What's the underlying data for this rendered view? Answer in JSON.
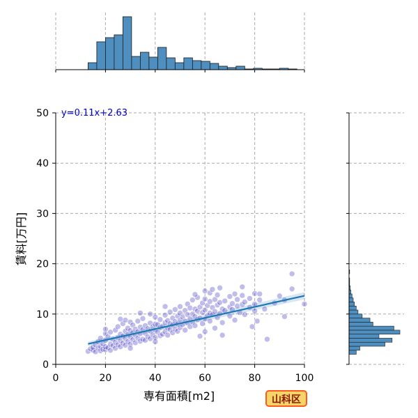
{
  "chart_data": {
    "type": "scatter",
    "xlabel": "専有面積[m2]",
    "ylabel": "賃料[万円]",
    "xlim": [
      0,
      100
    ],
    "ylim": [
      0,
      50
    ],
    "x_ticks": [
      0,
      20,
      40,
      60,
      80,
      100
    ],
    "y_ticks": [
      0,
      10,
      20,
      30,
      40,
      50
    ],
    "grid": true,
    "regression": {
      "label": "y=0.11x+2.63",
      "slope": 0.11,
      "intercept": 2.63,
      "x_range": [
        13,
        100
      ],
      "color": "#1f77b4"
    },
    "point_color": "#3a2fc0",
    "hist_color": "#4f8fc0",
    "points": [
      [
        13,
        2.6
      ],
      [
        14,
        3.1
      ],
      [
        15,
        2.8
      ],
      [
        15,
        3.4
      ],
      [
        16,
        2.5
      ],
      [
        16,
        3.9
      ],
      [
        17,
        3.2
      ],
      [
        17,
        4.5
      ],
      [
        18,
        2.7
      ],
      [
        18,
        3.6
      ],
      [
        18,
        5.2
      ],
      [
        19,
        3.0
      ],
      [
        19,
        4.1
      ],
      [
        20,
        2.9
      ],
      [
        20,
        3.5
      ],
      [
        20,
        4.8
      ],
      [
        20,
        6.1
      ],
      [
        20,
        7.0
      ],
      [
        21,
        3.3
      ],
      [
        21,
        5.5
      ],
      [
        22,
        2.8
      ],
      [
        22,
        4.0
      ],
      [
        22,
        6.4
      ],
      [
        23,
        3.7
      ],
      [
        23,
        5.0
      ],
      [
        24,
        3.2
      ],
      [
        24,
        4.4
      ],
      [
        24,
        6.8
      ],
      [
        25,
        3.9
      ],
      [
        25,
        5.3
      ],
      [
        25,
        7.5
      ],
      [
        26,
        3.5
      ],
      [
        26,
        4.7
      ],
      [
        26,
        6.0
      ],
      [
        27,
        4.2
      ],
      [
        27,
        5.6
      ],
      [
        27,
        8.1
      ],
      [
        28,
        3.8
      ],
      [
        28,
        5.1
      ],
      [
        28,
        6.6
      ],
      [
        28,
        8.8
      ],
      [
        29,
        4.5
      ],
      [
        29,
        5.9
      ],
      [
        29,
        7.2
      ],
      [
        30,
        4.0
      ],
      [
        30,
        5.4
      ],
      [
        30,
        6.7
      ],
      [
        30,
        8.4
      ],
      [
        30,
        3.2
      ],
      [
        31,
        4.9
      ],
      [
        31,
        6.3
      ],
      [
        31,
        7.8
      ],
      [
        32,
        4.3
      ],
      [
        32,
        5.8
      ],
      [
        32,
        7.0
      ],
      [
        33,
        5.2
      ],
      [
        33,
        6.5
      ],
      [
        33,
        8.6
      ],
      [
        34,
        4.6
      ],
      [
        34,
        6.1
      ],
      [
        34,
        7.4
      ],
      [
        35,
        5.0
      ],
      [
        35,
        6.9
      ],
      [
        35,
        9.1
      ],
      [
        36,
        4.8
      ],
      [
        36,
        6.2
      ],
      [
        36,
        7.7
      ],
      [
        37,
        5.5
      ],
      [
        37,
        7.1
      ],
      [
        38,
        5.1
      ],
      [
        38,
        6.6
      ],
      [
        38,
        8.2
      ],
      [
        38,
        10.0
      ],
      [
        39,
        5.9
      ],
      [
        39,
        7.5
      ],
      [
        40,
        5.3
      ],
      [
        40,
        6.8
      ],
      [
        40,
        8.0
      ],
      [
        40,
        9.4
      ],
      [
        40,
        4.5
      ],
      [
        41,
        6.4
      ],
      [
        41,
        7.9
      ],
      [
        42,
        5.7
      ],
      [
        42,
        7.3
      ],
      [
        42,
        8.9
      ],
      [
        43,
        6.0
      ],
      [
        43,
        7.6
      ],
      [
        44,
        6.5
      ],
      [
        44,
        8.3
      ],
      [
        44,
        9.8
      ],
      [
        45,
        5.8
      ],
      [
        45,
        7.2
      ],
      [
        45,
        8.7
      ],
      [
        46,
        6.9
      ],
      [
        46,
        8.1
      ],
      [
        46,
        10.4
      ],
      [
        47,
        6.3
      ],
      [
        47,
        7.8
      ],
      [
        47,
        9.2
      ],
      [
        48,
        7.0
      ],
      [
        48,
        8.5
      ],
      [
        48,
        10.9
      ],
      [
        49,
        6.6
      ],
      [
        49,
        8.0
      ],
      [
        49,
        9.6
      ],
      [
        50,
        7.3
      ],
      [
        50,
        8.8
      ],
      [
        50,
        10.2
      ],
      [
        50,
        11.5
      ],
      [
        51,
        7.9
      ],
      [
        51,
        9.4
      ],
      [
        52,
        6.8
      ],
      [
        52,
        8.6
      ],
      [
        52,
        10.7
      ],
      [
        53,
        8.2
      ],
      [
        53,
        9.9
      ],
      [
        53,
        12.0
      ],
      [
        54,
        7.5
      ],
      [
        54,
        9.1
      ],
      [
        54,
        11.2
      ],
      [
        55,
        8.4
      ],
      [
        55,
        10.0
      ],
      [
        55,
        12.8
      ],
      [
        56,
        7.7
      ],
      [
        56,
        9.5
      ],
      [
        56,
        11.0
      ],
      [
        57,
        8.9
      ],
      [
        57,
        10.6
      ],
      [
        57,
        13.3
      ],
      [
        58,
        9.2
      ],
      [
        58,
        11.4
      ],
      [
        58,
        5.6
      ],
      [
        59,
        8.1
      ],
      [
        59,
        10.3
      ],
      [
        59,
        12.2
      ],
      [
        60,
        9.0
      ],
      [
        60,
        10.8
      ],
      [
        60,
        13.0
      ],
      [
        60,
        14.6
      ],
      [
        60,
        6.5
      ],
      [
        61,
        9.7
      ],
      [
        61,
        11.7
      ],
      [
        62,
        8.6
      ],
      [
        62,
        10.2
      ],
      [
        62,
        12.5
      ],
      [
        62,
        14.2
      ],
      [
        63,
        9.9
      ],
      [
        63,
        11.3
      ],
      [
        64,
        10.5
      ],
      [
        64,
        12.9
      ],
      [
        64,
        7.2
      ],
      [
        65,
        9.3
      ],
      [
        65,
        11.8
      ],
      [
        65,
        13.8
      ],
      [
        66,
        10.1
      ],
      [
        66,
        12.3
      ],
      [
        66,
        15.2
      ],
      [
        67,
        8.3
      ],
      [
        67,
        11.0
      ],
      [
        67,
        5.8
      ],
      [
        68,
        10.7
      ],
      [
        68,
        12.6
      ],
      [
        70,
        9.6
      ],
      [
        70,
        11.4
      ],
      [
        70,
        13.5
      ],
      [
        71,
        10.9
      ],
      [
        71,
        12.1
      ],
      [
        72,
        8.8
      ],
      [
        72,
        14.0
      ],
      [
        73,
        11.6
      ],
      [
        73,
        12.9
      ],
      [
        74,
        10.3
      ],
      [
        75,
        11.9
      ],
      [
        75,
        13.7
      ],
      [
        75,
        15.4
      ],
      [
        76,
        9.9
      ],
      [
        76,
        12.4
      ],
      [
        78,
        11.3
      ],
      [
        78,
        13.1
      ],
      [
        79,
        7.5
      ],
      [
        80,
        12.0
      ],
      [
        80,
        10.6
      ],
      [
        80,
        14.1
      ],
      [
        81,
        8.6
      ],
      [
        82,
        12.8
      ],
      [
        82,
        14.0
      ],
      [
        84,
        11.0
      ],
      [
        85,
        5.0
      ],
      [
        88,
        12.2
      ],
      [
        90,
        13.6
      ],
      [
        92,
        9.5
      ],
      [
        92,
        12.8
      ],
      [
        95,
        18.0
      ],
      [
        95,
        15.0
      ],
      [
        100,
        12.0
      ],
      [
        34,
        10.2
      ],
      [
        26,
        9.0
      ],
      [
        44,
        11.5
      ],
      [
        56,
        13.9
      ],
      [
        63,
        14.9
      ]
    ],
    "top_hist": {
      "bin_edges": [
        13,
        16.5,
        20,
        23.5,
        27,
        30.5,
        34,
        37.5,
        41,
        44.5,
        48,
        51.5,
        55,
        58.5,
        62,
        65.5,
        69,
        72.5,
        76,
        79.5,
        83,
        86.5,
        90,
        93.5,
        97
      ],
      "counts": [
        10,
        40,
        46,
        50,
        76,
        19,
        25,
        18,
        32,
        17,
        10,
        17,
        13,
        12,
        9,
        5,
        3,
        5,
        1,
        2,
        1,
        1,
        2,
        1
      ]
    },
    "right_hist": {
      "bin_edges": [
        2,
        2.8,
        3.6,
        4.4,
        5.2,
        6.0,
        6.8,
        7.6,
        8.4,
        9.2,
        10.0,
        10.8,
        11.6,
        12.4,
        13.2,
        14.0,
        14.8,
        15.6,
        16.4,
        17.2,
        18.0,
        18.8
      ],
      "counts": [
        12,
        18,
        60,
        72,
        50,
        85,
        75,
        40,
        35,
        22,
        15,
        12,
        9,
        7,
        5,
        3,
        2,
        1,
        1,
        0,
        1
      ]
    }
  },
  "badge": {
    "text": "山科区"
  }
}
